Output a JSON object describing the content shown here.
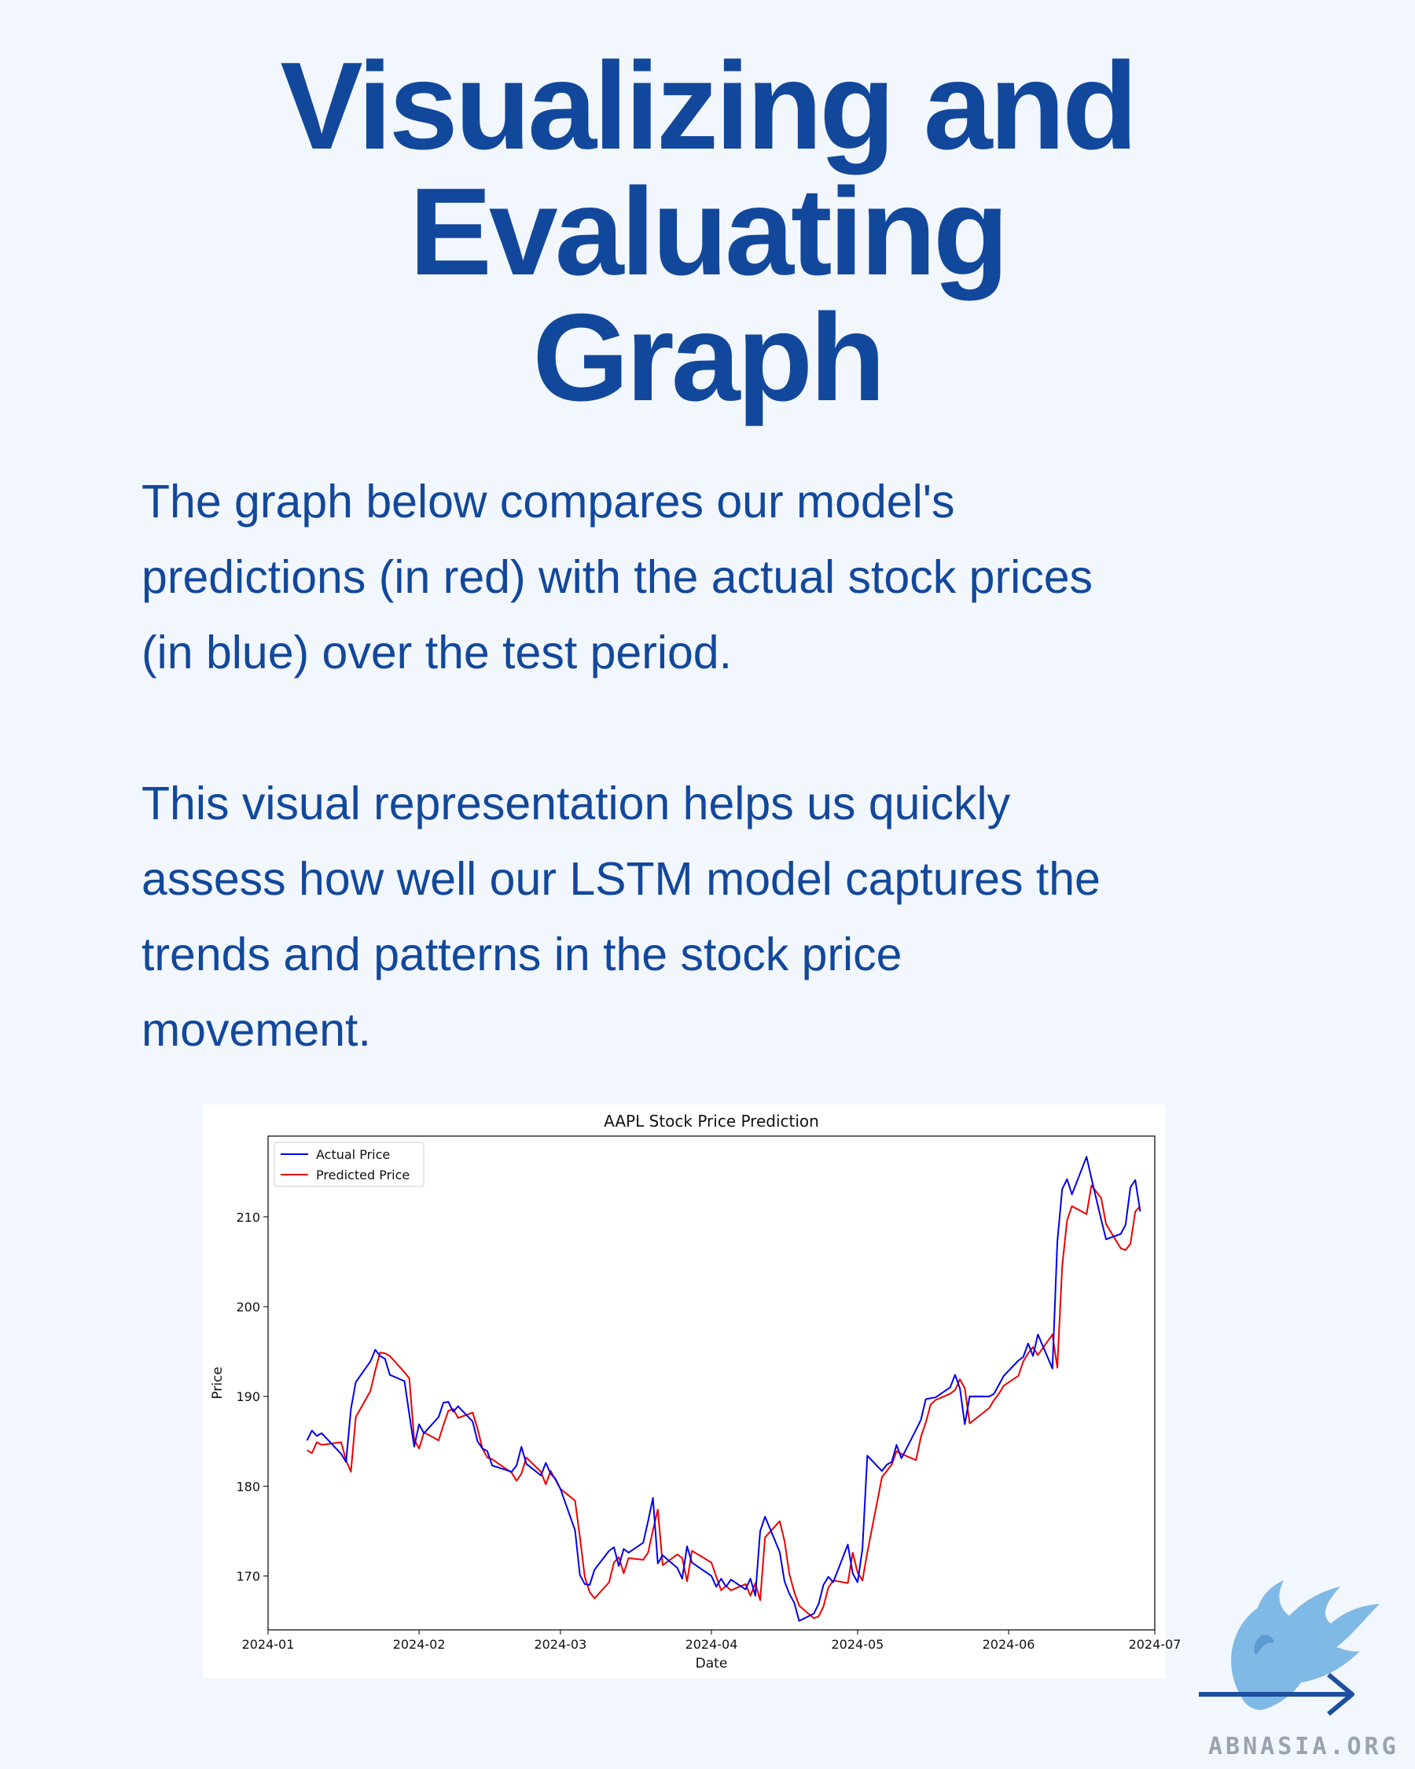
{
  "title": {
    "line1": "Visualizing and",
    "line2": "Evaluating",
    "line3": "Graph"
  },
  "paragraphs": {
    "p1_l1": "The graph below compares our model's",
    "p1_l2": "predictions (in red) with the actual stock prices",
    "p1_l3": "(in blue) over the test period.",
    "p2_l1": "This visual representation helps us quickly",
    "p2_l2": "assess how well our LSTM model captures the",
    "p2_l3": "trends and patterns in the stock price",
    "p2_l4": "movement."
  },
  "colors": {
    "accent": "#12489b",
    "background": "#f2f6fd",
    "actual": "#0000ee",
    "predicted": "#ee0000"
  },
  "chart_data": {
    "type": "line",
    "title": "AAPL Stock Price Prediction",
    "xlabel": "Date",
    "ylabel": "Price",
    "xlim": [
      "2024-01-01",
      "2024-07-01"
    ],
    "ylim": [
      164,
      219
    ],
    "x_ticks": [
      "2024-01",
      "2024-02",
      "2024-03",
      "2024-04",
      "2024-05",
      "2024-06",
      "2024-07"
    ],
    "y_ticks": [
      170,
      180,
      190,
      200,
      210
    ],
    "legend_position": "top-left",
    "series": [
      {
        "name": "Actual Price",
        "color": "#0000ee",
        "points": [
          [
            "2024-01-09",
            185.1
          ],
          [
            "2024-01-10",
            186.2
          ],
          [
            "2024-01-11",
            185.6
          ],
          [
            "2024-01-12",
            185.9
          ],
          [
            "2024-01-16",
            183.6
          ],
          [
            "2024-01-17",
            182.7
          ],
          [
            "2024-01-18",
            188.6
          ],
          [
            "2024-01-19",
            191.6
          ],
          [
            "2024-01-22",
            193.9
          ],
          [
            "2024-01-23",
            195.2
          ],
          [
            "2024-01-24",
            194.5
          ],
          [
            "2024-01-25",
            194.2
          ],
          [
            "2024-01-26",
            192.4
          ],
          [
            "2024-01-29",
            191.7
          ],
          [
            "2024-01-30",
            188.0
          ],
          [
            "2024-01-31",
            184.4
          ],
          [
            "2024-02-01",
            186.9
          ],
          [
            "2024-02-02",
            185.9
          ],
          [
            "2024-02-05",
            187.7
          ],
          [
            "2024-02-06",
            189.3
          ],
          [
            "2024-02-07",
            189.4
          ],
          [
            "2024-02-08",
            188.3
          ],
          [
            "2024-02-09",
            188.9
          ],
          [
            "2024-02-12",
            187.2
          ],
          [
            "2024-02-13",
            185.0
          ],
          [
            "2024-02-14",
            184.2
          ],
          [
            "2024-02-15",
            183.9
          ],
          [
            "2024-02-16",
            182.3
          ],
          [
            "2024-02-20",
            181.6
          ],
          [
            "2024-02-21",
            182.3
          ],
          [
            "2024-02-22",
            184.4
          ],
          [
            "2024-02-23",
            182.5
          ],
          [
            "2024-02-26",
            181.2
          ],
          [
            "2024-02-27",
            182.6
          ],
          [
            "2024-02-28",
            181.4
          ],
          [
            "2024-02-29",
            180.8
          ],
          [
            "2024-03-01",
            179.7
          ],
          [
            "2024-03-04",
            175.1
          ],
          [
            "2024-03-05",
            170.1
          ],
          [
            "2024-03-06",
            169.1
          ],
          [
            "2024-03-07",
            169.0
          ],
          [
            "2024-03-08",
            170.7
          ],
          [
            "2024-03-11",
            172.8
          ],
          [
            "2024-03-12",
            173.2
          ],
          [
            "2024-03-13",
            171.1
          ],
          [
            "2024-03-14",
            173.0
          ],
          [
            "2024-03-15",
            172.6
          ],
          [
            "2024-03-18",
            173.7
          ],
          [
            "2024-03-19",
            176.1
          ],
          [
            "2024-03-20",
            178.7
          ],
          [
            "2024-03-21",
            171.4
          ],
          [
            "2024-03-22",
            172.3
          ],
          [
            "2024-03-25",
            170.9
          ],
          [
            "2024-03-26",
            169.7
          ],
          [
            "2024-03-27",
            173.3
          ],
          [
            "2024-03-28",
            171.5
          ],
          [
            "2024-04-01",
            170.0
          ],
          [
            "2024-04-02",
            168.8
          ],
          [
            "2024-04-03",
            169.7
          ],
          [
            "2024-04-04",
            168.8
          ],
          [
            "2024-04-05",
            169.6
          ],
          [
            "2024-04-08",
            168.5
          ],
          [
            "2024-04-09",
            169.7
          ],
          [
            "2024-04-10",
            167.8
          ],
          [
            "2024-04-11",
            175.0
          ],
          [
            "2024-04-12",
            176.6
          ],
          [
            "2024-04-15",
            172.7
          ],
          [
            "2024-04-16",
            169.4
          ],
          [
            "2024-04-17",
            168.0
          ],
          [
            "2024-04-18",
            167.0
          ],
          [
            "2024-04-19",
            165.0
          ],
          [
            "2024-04-22",
            165.8
          ],
          [
            "2024-04-23",
            166.9
          ],
          [
            "2024-04-24",
            169.0
          ],
          [
            "2024-04-25",
            169.9
          ],
          [
            "2024-04-26",
            169.3
          ],
          [
            "2024-04-29",
            173.5
          ],
          [
            "2024-04-30",
            170.3
          ],
          [
            "2024-05-01",
            169.3
          ],
          [
            "2024-05-02",
            173.0
          ],
          [
            "2024-05-03",
            183.4
          ],
          [
            "2024-05-06",
            181.7
          ],
          [
            "2024-05-07",
            182.4
          ],
          [
            "2024-05-08",
            182.7
          ],
          [
            "2024-05-09",
            184.6
          ],
          [
            "2024-05-10",
            183.1
          ],
          [
            "2024-05-13",
            186.3
          ],
          [
            "2024-05-14",
            187.4
          ],
          [
            "2024-05-15",
            189.7
          ],
          [
            "2024-05-16",
            189.8
          ],
          [
            "2024-05-17",
            189.9
          ],
          [
            "2024-05-20",
            191.0
          ],
          [
            "2024-05-21",
            192.4
          ],
          [
            "2024-05-22",
            190.9
          ],
          [
            "2024-05-23",
            186.9
          ],
          [
            "2024-05-24",
            190.0
          ],
          [
            "2024-05-28",
            189.99
          ],
          [
            "2024-05-29",
            190.3
          ],
          [
            "2024-05-30",
            191.3
          ],
          [
            "2024-05-31",
            192.3
          ],
          [
            "2024-06-03",
            194.0
          ],
          [
            "2024-06-04",
            194.4
          ],
          [
            "2024-06-05",
            195.9
          ],
          [
            "2024-06-06",
            194.5
          ],
          [
            "2024-06-07",
            196.9
          ],
          [
            "2024-06-10",
            193.1
          ],
          [
            "2024-06-11",
            207.2
          ],
          [
            "2024-06-12",
            213.1
          ],
          [
            "2024-06-13",
            214.2
          ],
          [
            "2024-06-14",
            212.5
          ],
          [
            "2024-06-17",
            216.7
          ],
          [
            "2024-06-18",
            214.3
          ],
          [
            "2024-06-20",
            209.7
          ],
          [
            "2024-06-21",
            207.5
          ],
          [
            "2024-06-24",
            208.1
          ],
          [
            "2024-06-25",
            209.1
          ],
          [
            "2024-06-26",
            213.3
          ],
          [
            "2024-06-27",
            214.1
          ],
          [
            "2024-06-28",
            210.6
          ]
        ]
      },
      {
        "name": "Predicted Price",
        "color": "#ee0000",
        "points": [
          [
            "2024-01-09",
            184.0
          ],
          [
            "2024-01-10",
            183.7
          ],
          [
            "2024-01-11",
            184.9
          ],
          [
            "2024-01-12",
            184.6
          ],
          [
            "2024-01-16",
            184.9
          ],
          [
            "2024-01-17",
            182.9
          ],
          [
            "2024-01-18",
            181.6
          ],
          [
            "2024-01-19",
            187.7
          ],
          [
            "2024-01-22",
            190.6
          ],
          [
            "2024-01-23",
            192.9
          ],
          [
            "2024-01-24",
            194.9
          ],
          [
            "2024-01-25",
            194.8
          ],
          [
            "2024-01-26",
            194.5
          ],
          [
            "2024-01-29",
            192.7
          ],
          [
            "2024-01-30",
            192.0
          ],
          [
            "2024-01-31",
            185.2
          ],
          [
            "2024-02-01",
            184.2
          ],
          [
            "2024-02-02",
            186.0
          ],
          [
            "2024-02-05",
            185.1
          ],
          [
            "2024-02-06",
            186.8
          ],
          [
            "2024-02-07",
            188.4
          ],
          [
            "2024-02-08",
            188.6
          ],
          [
            "2024-02-09",
            187.6
          ],
          [
            "2024-02-12",
            188.2
          ],
          [
            "2024-02-13",
            186.4
          ],
          [
            "2024-02-14",
            184.2
          ],
          [
            "2024-02-15",
            183.2
          ],
          [
            "2024-02-16",
            183.0
          ],
          [
            "2024-02-20",
            181.5
          ],
          [
            "2024-02-21",
            180.6
          ],
          [
            "2024-02-22",
            181.4
          ],
          [
            "2024-02-23",
            183.2
          ],
          [
            "2024-02-26",
            181.6
          ],
          [
            "2024-02-27",
            180.2
          ],
          [
            "2024-02-28",
            181.7
          ],
          [
            "2024-02-29",
            180.7
          ],
          [
            "2024-03-01",
            179.7
          ],
          [
            "2024-03-04",
            178.4
          ],
          [
            "2024-03-05",
            174.3
          ],
          [
            "2024-03-06",
            169.9
          ],
          [
            "2024-03-07",
            168.2
          ],
          [
            "2024-03-08",
            167.5
          ],
          [
            "2024-03-11",
            169.3
          ],
          [
            "2024-03-12",
            171.5
          ],
          [
            "2024-03-13",
            172.1
          ],
          [
            "2024-03-14",
            170.3
          ],
          [
            "2024-03-15",
            172.0
          ],
          [
            "2024-03-18",
            171.8
          ],
          [
            "2024-03-19",
            172.6
          ],
          [
            "2024-03-20",
            175.1
          ],
          [
            "2024-03-21",
            177.4
          ],
          [
            "2024-03-22",
            171.2
          ],
          [
            "2024-03-25",
            172.4
          ],
          [
            "2024-03-26",
            172.0
          ],
          [
            "2024-03-27",
            169.4
          ],
          [
            "2024-03-28",
            172.8
          ],
          [
            "2024-04-01",
            171.5
          ],
          [
            "2024-04-02",
            169.9
          ],
          [
            "2024-04-03",
            168.4
          ],
          [
            "2024-04-04",
            168.9
          ],
          [
            "2024-04-05",
            168.4
          ],
          [
            "2024-04-08",
            169.1
          ],
          [
            "2024-04-09",
            167.8
          ],
          [
            "2024-04-10",
            169.2
          ],
          [
            "2024-04-11",
            167.3
          ],
          [
            "2024-04-12",
            174.3
          ],
          [
            "2024-04-15",
            176.1
          ],
          [
            "2024-04-16",
            173.9
          ],
          [
            "2024-04-17",
            170.2
          ],
          [
            "2024-04-18",
            168.2
          ],
          [
            "2024-04-19",
            166.7
          ],
          [
            "2024-04-22",
            165.3
          ],
          [
            "2024-04-23",
            165.5
          ],
          [
            "2024-04-24",
            166.6
          ],
          [
            "2024-04-25",
            168.7
          ],
          [
            "2024-04-26",
            169.5
          ],
          [
            "2024-04-29",
            169.2
          ],
          [
            "2024-04-30",
            172.6
          ],
          [
            "2024-05-01",
            170.4
          ],
          [
            "2024-05-02",
            169.5
          ],
          [
            "2024-05-03",
            172.6
          ],
          [
            "2024-05-06",
            181.0
          ],
          [
            "2024-05-07",
            181.7
          ],
          [
            "2024-05-08",
            182.4
          ],
          [
            "2024-05-09",
            183.9
          ],
          [
            "2024-05-10",
            183.6
          ],
          [
            "2024-05-13",
            182.9
          ],
          [
            "2024-05-14",
            185.5
          ],
          [
            "2024-05-15",
            187.1
          ],
          [
            "2024-05-16",
            189.1
          ],
          [
            "2024-05-17",
            189.6
          ],
          [
            "2024-05-20",
            190.3
          ],
          [
            "2024-05-21",
            190.7
          ],
          [
            "2024-05-22",
            191.9
          ],
          [
            "2024-05-23",
            190.9
          ],
          [
            "2024-05-24",
            187.0
          ],
          [
            "2024-05-28",
            188.7
          ],
          [
            "2024-05-29",
            189.6
          ],
          [
            "2024-05-30",
            190.3
          ],
          [
            "2024-05-31",
            191.2
          ],
          [
            "2024-06-03",
            192.3
          ],
          [
            "2024-06-04",
            193.9
          ],
          [
            "2024-06-05",
            194.8
          ],
          [
            "2024-06-06",
            195.5
          ],
          [
            "2024-06-07",
            194.6
          ],
          [
            "2024-06-10",
            196.9
          ],
          [
            "2024-06-11",
            193.2
          ],
          [
            "2024-06-12",
            204.5
          ],
          [
            "2024-06-13",
            209.6
          ],
          [
            "2024-06-14",
            211.2
          ],
          [
            "2024-06-17",
            210.3
          ],
          [
            "2024-06-18",
            213.5
          ],
          [
            "2024-06-20",
            212.1
          ],
          [
            "2024-06-21",
            209.2
          ],
          [
            "2024-06-24",
            206.5
          ],
          [
            "2024-06-25",
            206.3
          ],
          [
            "2024-06-26",
            207.0
          ],
          [
            "2024-06-27",
            210.6
          ],
          [
            "2024-06-28",
            211.2
          ]
        ]
      }
    ]
  },
  "logo": {
    "name": "abnasia-logo-icon",
    "text": "ABNASIA.ORG"
  }
}
